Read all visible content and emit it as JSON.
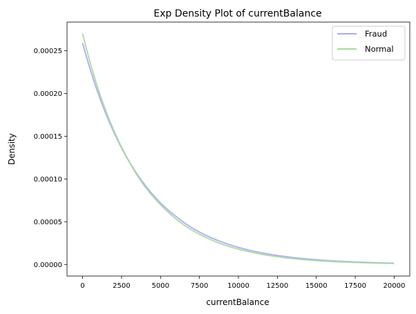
{
  "chart_data": {
    "type": "line",
    "title": "Exp Density Plot of currentBalance",
    "xlabel": "currentBalance",
    "ylabel": "Density",
    "xlim": [
      -1000,
      21000
    ],
    "ylim": [
      -1.35e-05,
      0.0002835
    ],
    "x_ticks": [
      0,
      2500,
      5000,
      7500,
      10000,
      12500,
      15000,
      17500,
      20000
    ],
    "x_tick_labels": [
      "0",
      "2500",
      "5000",
      "7500",
      "10000",
      "12500",
      "15000",
      "17500",
      "20000"
    ],
    "y_ticks": [
      0,
      5e-05,
      0.0001,
      0.00015,
      0.0002,
      0.00025
    ],
    "y_tick_labels": [
      "0.00000",
      "0.00005",
      "0.00010",
      "0.00015",
      "0.00020",
      "0.00025"
    ],
    "grid": false,
    "legend": "top-right",
    "series": [
      {
        "name": "Fraud",
        "color": "#aaaaf2",
        "x": [
          0,
          1000,
          2000,
          3000,
          4000,
          5000,
          6000,
          7000,
          8000,
          9000,
          10000,
          11000,
          12000,
          13000,
          14000,
          15000,
          16000,
          17000,
          18000,
          19000,
          20000
        ],
        "values": [
          0.000259,
          0.0002,
          0.000155,
          0.00012,
          9.3e-05,
          7.2e-05,
          5.6e-05,
          4.32e-05,
          3.34e-05,
          2.59e-05,
          2e-05,
          1.55e-05,
          1.2e-05,
          9.3e-06,
          7.2e-06,
          5.6e-06,
          4.3e-06,
          3.3e-06,
          2.6e-06,
          2e-06,
          1.5e-06
        ]
      },
      {
        "name": "Normal",
        "color": "#a8d8a0",
        "x": [
          0,
          1000,
          2000,
          3000,
          4000,
          5000,
          6000,
          7000,
          8000,
          9000,
          10000,
          11000,
          12000,
          13000,
          14000,
          15000,
          16000,
          17000,
          18000,
          19000,
          20000
        ],
        "values": [
          0.00027,
          0.000205,
          0.000157,
          0.00012,
          9.1e-05,
          7e-05,
          5.31e-05,
          4.05e-05,
          3.09e-05,
          2.35e-05,
          1.79e-05,
          1.37e-05,
          1.04e-05,
          7.9e-06,
          6e-06,
          4.6e-06,
          3.5e-06,
          2.7e-06,
          2.1e-06,
          1.6e-06,
          1.2e-06
        ]
      }
    ]
  }
}
